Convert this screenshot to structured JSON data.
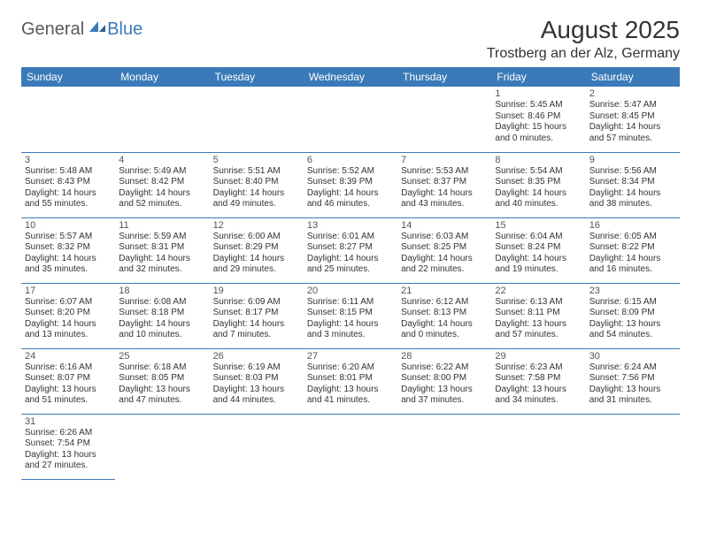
{
  "logo": {
    "part1": "General",
    "part2": "Blue"
  },
  "title": "August 2025",
  "location": "Trostberg an der Alz, Germany",
  "colors": {
    "header_bg": "#3a7ab8",
    "header_fg": "#ffffff",
    "rule": "#3a7ab8",
    "text": "#333333"
  },
  "weekdays": [
    "Sunday",
    "Monday",
    "Tuesday",
    "Wednesday",
    "Thursday",
    "Friday",
    "Saturday"
  ],
  "weeks": [
    [
      null,
      null,
      null,
      null,
      null,
      {
        "n": "1",
        "sr": "Sunrise: 5:45 AM",
        "ss": "Sunset: 8:46 PM",
        "d1": "Daylight: 15 hours",
        "d2": "and 0 minutes."
      },
      {
        "n": "2",
        "sr": "Sunrise: 5:47 AM",
        "ss": "Sunset: 8:45 PM",
        "d1": "Daylight: 14 hours",
        "d2": "and 57 minutes."
      }
    ],
    [
      {
        "n": "3",
        "sr": "Sunrise: 5:48 AM",
        "ss": "Sunset: 8:43 PM",
        "d1": "Daylight: 14 hours",
        "d2": "and 55 minutes."
      },
      {
        "n": "4",
        "sr": "Sunrise: 5:49 AM",
        "ss": "Sunset: 8:42 PM",
        "d1": "Daylight: 14 hours",
        "d2": "and 52 minutes."
      },
      {
        "n": "5",
        "sr": "Sunrise: 5:51 AM",
        "ss": "Sunset: 8:40 PM",
        "d1": "Daylight: 14 hours",
        "d2": "and 49 minutes."
      },
      {
        "n": "6",
        "sr": "Sunrise: 5:52 AM",
        "ss": "Sunset: 8:39 PM",
        "d1": "Daylight: 14 hours",
        "d2": "and 46 minutes."
      },
      {
        "n": "7",
        "sr": "Sunrise: 5:53 AM",
        "ss": "Sunset: 8:37 PM",
        "d1": "Daylight: 14 hours",
        "d2": "and 43 minutes."
      },
      {
        "n": "8",
        "sr": "Sunrise: 5:54 AM",
        "ss": "Sunset: 8:35 PM",
        "d1": "Daylight: 14 hours",
        "d2": "and 40 minutes."
      },
      {
        "n": "9",
        "sr": "Sunrise: 5:56 AM",
        "ss": "Sunset: 8:34 PM",
        "d1": "Daylight: 14 hours",
        "d2": "and 38 minutes."
      }
    ],
    [
      {
        "n": "10",
        "sr": "Sunrise: 5:57 AM",
        "ss": "Sunset: 8:32 PM",
        "d1": "Daylight: 14 hours",
        "d2": "and 35 minutes."
      },
      {
        "n": "11",
        "sr": "Sunrise: 5:59 AM",
        "ss": "Sunset: 8:31 PM",
        "d1": "Daylight: 14 hours",
        "d2": "and 32 minutes."
      },
      {
        "n": "12",
        "sr": "Sunrise: 6:00 AM",
        "ss": "Sunset: 8:29 PM",
        "d1": "Daylight: 14 hours",
        "d2": "and 29 minutes."
      },
      {
        "n": "13",
        "sr": "Sunrise: 6:01 AM",
        "ss": "Sunset: 8:27 PM",
        "d1": "Daylight: 14 hours",
        "d2": "and 25 minutes."
      },
      {
        "n": "14",
        "sr": "Sunrise: 6:03 AM",
        "ss": "Sunset: 8:25 PM",
        "d1": "Daylight: 14 hours",
        "d2": "and 22 minutes."
      },
      {
        "n": "15",
        "sr": "Sunrise: 6:04 AM",
        "ss": "Sunset: 8:24 PM",
        "d1": "Daylight: 14 hours",
        "d2": "and 19 minutes."
      },
      {
        "n": "16",
        "sr": "Sunrise: 6:05 AM",
        "ss": "Sunset: 8:22 PM",
        "d1": "Daylight: 14 hours",
        "d2": "and 16 minutes."
      }
    ],
    [
      {
        "n": "17",
        "sr": "Sunrise: 6:07 AM",
        "ss": "Sunset: 8:20 PM",
        "d1": "Daylight: 14 hours",
        "d2": "and 13 minutes."
      },
      {
        "n": "18",
        "sr": "Sunrise: 6:08 AM",
        "ss": "Sunset: 8:18 PM",
        "d1": "Daylight: 14 hours",
        "d2": "and 10 minutes."
      },
      {
        "n": "19",
        "sr": "Sunrise: 6:09 AM",
        "ss": "Sunset: 8:17 PM",
        "d1": "Daylight: 14 hours",
        "d2": "and 7 minutes."
      },
      {
        "n": "20",
        "sr": "Sunrise: 6:11 AM",
        "ss": "Sunset: 8:15 PM",
        "d1": "Daylight: 14 hours",
        "d2": "and 3 minutes."
      },
      {
        "n": "21",
        "sr": "Sunrise: 6:12 AM",
        "ss": "Sunset: 8:13 PM",
        "d1": "Daylight: 14 hours",
        "d2": "and 0 minutes."
      },
      {
        "n": "22",
        "sr": "Sunrise: 6:13 AM",
        "ss": "Sunset: 8:11 PM",
        "d1": "Daylight: 13 hours",
        "d2": "and 57 minutes."
      },
      {
        "n": "23",
        "sr": "Sunrise: 6:15 AM",
        "ss": "Sunset: 8:09 PM",
        "d1": "Daylight: 13 hours",
        "d2": "and 54 minutes."
      }
    ],
    [
      {
        "n": "24",
        "sr": "Sunrise: 6:16 AM",
        "ss": "Sunset: 8:07 PM",
        "d1": "Daylight: 13 hours",
        "d2": "and 51 minutes."
      },
      {
        "n": "25",
        "sr": "Sunrise: 6:18 AM",
        "ss": "Sunset: 8:05 PM",
        "d1": "Daylight: 13 hours",
        "d2": "and 47 minutes."
      },
      {
        "n": "26",
        "sr": "Sunrise: 6:19 AM",
        "ss": "Sunset: 8:03 PM",
        "d1": "Daylight: 13 hours",
        "d2": "and 44 minutes."
      },
      {
        "n": "27",
        "sr": "Sunrise: 6:20 AM",
        "ss": "Sunset: 8:01 PM",
        "d1": "Daylight: 13 hours",
        "d2": "and 41 minutes."
      },
      {
        "n": "28",
        "sr": "Sunrise: 6:22 AM",
        "ss": "Sunset: 8:00 PM",
        "d1": "Daylight: 13 hours",
        "d2": "and 37 minutes."
      },
      {
        "n": "29",
        "sr": "Sunrise: 6:23 AM",
        "ss": "Sunset: 7:58 PM",
        "d1": "Daylight: 13 hours",
        "d2": "and 34 minutes."
      },
      {
        "n": "30",
        "sr": "Sunrise: 6:24 AM",
        "ss": "Sunset: 7:56 PM",
        "d1": "Daylight: 13 hours",
        "d2": "and 31 minutes."
      }
    ],
    [
      {
        "n": "31",
        "sr": "Sunrise: 6:26 AM",
        "ss": "Sunset: 7:54 PM",
        "d1": "Daylight: 13 hours",
        "d2": "and 27 minutes."
      },
      null,
      null,
      null,
      null,
      null,
      null
    ]
  ]
}
